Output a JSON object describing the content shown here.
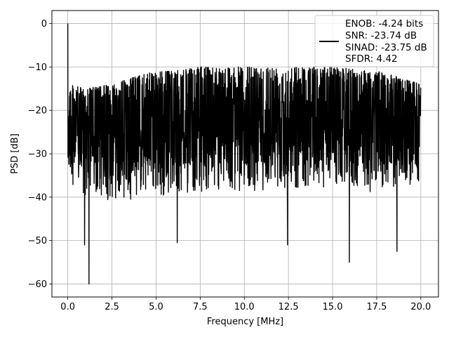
{
  "chart_data": {
    "type": "line",
    "title": "",
    "xlabel": "Frequency [MHz]",
    "ylabel": "PSD [dB]",
    "xlim": [
      -0.9,
      21.0
    ],
    "ylim": [
      -63.0,
      3.0
    ],
    "xticks": [
      0.0,
      2.5,
      5.0,
      7.5,
      10.0,
      12.5,
      15.0,
      17.5,
      20.0
    ],
    "xtick_labels": [
      "0.0",
      "2.5",
      "5.0",
      "7.5",
      "10.0",
      "12.5",
      "15.0",
      "17.5",
      "20.0"
    ],
    "yticks": [
      0,
      -10,
      -20,
      -30,
      -40,
      -50,
      -60
    ],
    "ytick_labels": [
      "0",
      "−10",
      "−20",
      "−30",
      "−40",
      "−50",
      "−60"
    ],
    "grid": true,
    "legend_placement": "top-right",
    "series": [
      {
        "color": "#000000",
        "peak": {
          "x": 0.0,
          "y": 0.0
        },
        "x_range": [
          0.0,
          20.0
        ],
        "noise_floor_median_db": -24,
        "noise_upper_envelope_db": [
          [
            0.0,
            -14
          ],
          [
            1.0,
            -15
          ],
          [
            2.5,
            -14
          ],
          [
            4.0,
            -12
          ],
          [
            5.0,
            -11
          ],
          [
            6.0,
            -11
          ],
          [
            7.5,
            -10
          ],
          [
            10.0,
            -10
          ],
          [
            12.5,
            -10
          ],
          [
            15.0,
            -10
          ],
          [
            17.5,
            -11
          ],
          [
            18.5,
            -12
          ],
          [
            20.0,
            -14
          ]
        ],
        "noise_lower_envelope_db": [
          [
            0.0,
            -36
          ],
          [
            1.0,
            -41
          ],
          [
            2.5,
            -41
          ],
          [
            5.0,
            -40
          ],
          [
            7.5,
            -39
          ],
          [
            10.0,
            -39
          ],
          [
            12.5,
            -38
          ],
          [
            15.0,
            -38
          ],
          [
            17.5,
            -39
          ],
          [
            20.0,
            -37
          ]
        ],
        "notable_dips": [
          {
            "x": 1.2,
            "y": -60.0
          },
          {
            "x": 0.95,
            "y": -51.0
          },
          {
            "x": 6.2,
            "y": -50.5
          },
          {
            "x": 12.45,
            "y": -51.0
          },
          {
            "x": 15.95,
            "y": -55.0
          },
          {
            "x": 18.65,
            "y": -52.5
          }
        ]
      }
    ],
    "legend": [
      {
        "label": "ENOB: -4.24 bits"
      },
      {
        "label": "SNR: -23.74 dB"
      },
      {
        "label": "SINAD: -23.75 dB"
      },
      {
        "label": "SFDR: 4.42"
      }
    ]
  }
}
